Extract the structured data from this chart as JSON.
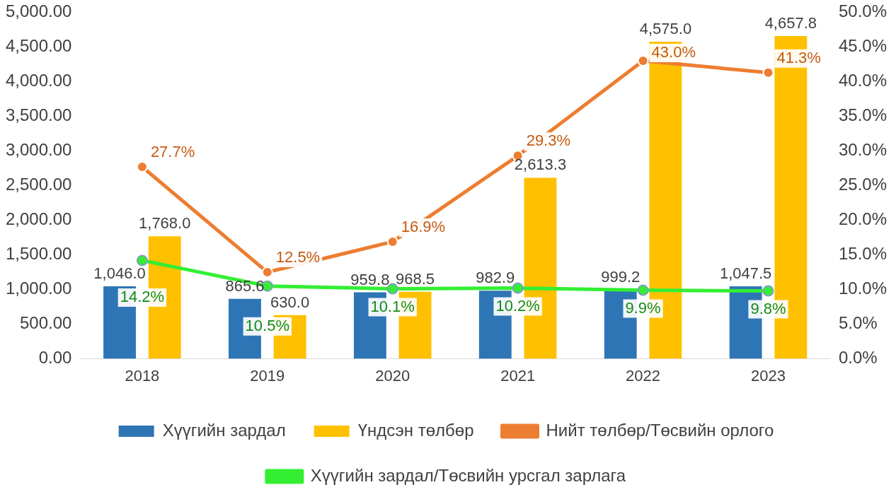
{
  "chart_data": {
    "type": "bar",
    "categories": [
      "2018",
      "2019",
      "2020",
      "2021",
      "2022",
      "2023"
    ],
    "series": [
      {
        "name": "Хүүгийн зардал",
        "color": "#2e75b6",
        "values": [
          1046.0,
          865.6,
          959.8,
          982.9,
          999.2,
          1047.5
        ],
        "value_labels": [
          "1,046.0",
          "865.6",
          "959.8",
          "982.9",
          "999.2",
          "1,047.5"
        ]
      },
      {
        "name": "Үндсэн төлбөр",
        "color": "#ffc000",
        "values": [
          1768.0,
          630.0,
          968.5,
          2613.3,
          4575.0,
          4657.8
        ],
        "value_labels": [
          "1,768.0",
          "630.0",
          "968.5",
          "2,613.3",
          "4,575.0",
          "4,657.8"
        ]
      },
      {
        "name": "Нийт төлбөр/Төсвийн орлого",
        "type": "line",
        "axis": "y2",
        "color": "#ed7d31",
        "values": [
          27.7,
          12.5,
          16.9,
          29.3,
          43.0,
          41.3
        ],
        "value_labels": [
          "27.7%",
          "12.5%",
          "16.9%",
          "29.3%",
          "43.0%",
          "41.3%"
        ]
      },
      {
        "name": "Хүүгийн зардал/Төсвийн урсгал зарлага",
        "type": "line",
        "axis": "y2",
        "color": "#33ee33",
        "values": [
          14.2,
          10.5,
          10.1,
          10.2,
          9.9,
          9.8
        ],
        "value_labels": [
          "14.2%",
          "10.5%",
          "10.1%",
          "10.2%",
          "9.9%",
          "9.8%"
        ]
      }
    ],
    "ylim": [
      0,
      5000
    ],
    "yticks": [
      {
        "value": 0,
        "label": "0.00"
      },
      {
        "value": 500,
        "label": "500.00"
      },
      {
        "value": 1000,
        "label": "1,000.00"
      },
      {
        "value": 1500,
        "label": "1,500.00"
      },
      {
        "value": 2000,
        "label": "2,000.00"
      },
      {
        "value": 2500,
        "label": "2,500.00"
      },
      {
        "value": 3000,
        "label": "3,000.00"
      },
      {
        "value": 3500,
        "label": "3,500.00"
      },
      {
        "value": 4000,
        "label": "4,000.00"
      },
      {
        "value": 4500,
        "label": "4,500.00"
      },
      {
        "value": 5000,
        "label": "5,000.00"
      }
    ],
    "y2lim": [
      0,
      50
    ],
    "y2ticks": [
      {
        "value": 0,
        "label": "0.0%"
      },
      {
        "value": 5,
        "label": "5.0%"
      },
      {
        "value": 10,
        "label": "10.0%"
      },
      {
        "value": 15,
        "label": "15.0%"
      },
      {
        "value": 20,
        "label": "20.0%"
      },
      {
        "value": 25,
        "label": "25.0%"
      },
      {
        "value": 30,
        "label": "30.0%"
      },
      {
        "value": 35,
        "label": "35.0%"
      },
      {
        "value": 40,
        "label": "40.0%"
      },
      {
        "value": 45,
        "label": "45.0%"
      },
      {
        "value": 50,
        "label": "50.0%"
      }
    ],
    "grid": false,
    "legend": "bottom",
    "marker": "circle",
    "line_style": "solid"
  }
}
